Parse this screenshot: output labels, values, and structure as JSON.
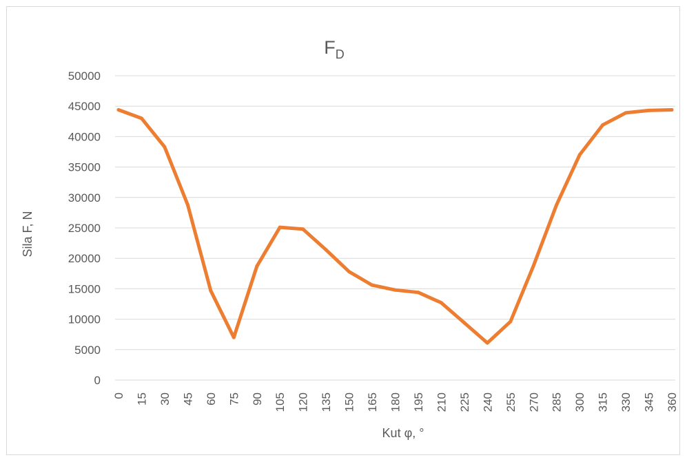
{
  "chart_data": {
    "type": "line",
    "title": "F",
    "title_subscript": "D",
    "xlabel": "Kut φ, °",
    "ylabel": "Sila F, N",
    "ylim": [
      0,
      50000
    ],
    "yticks": [
      "0",
      "5000",
      "10000",
      "15000",
      "20000",
      "25000",
      "30000",
      "35000",
      "40000",
      "45000",
      "50000"
    ],
    "categories": [
      "0",
      "15",
      "30",
      "45",
      "60",
      "75",
      "90",
      "105",
      "120",
      "135",
      "150",
      "165",
      "180",
      "195",
      "210",
      "225",
      "240",
      "255",
      "270",
      "285",
      "300",
      "315",
      "330",
      "345",
      "360"
    ],
    "series": [
      {
        "values": [
          44400,
          43000,
          38300,
          28800,
          14700,
          7000,
          18700,
          25100,
          24800,
          21400,
          17800,
          15600,
          14800,
          14400,
          12700,
          9400,
          6100,
          9600,
          18800,
          28800,
          37000,
          41900,
          43900,
          44300,
          44400
        ],
        "color": "#ED7D31"
      }
    ],
    "grid": true,
    "legend": "none"
  }
}
